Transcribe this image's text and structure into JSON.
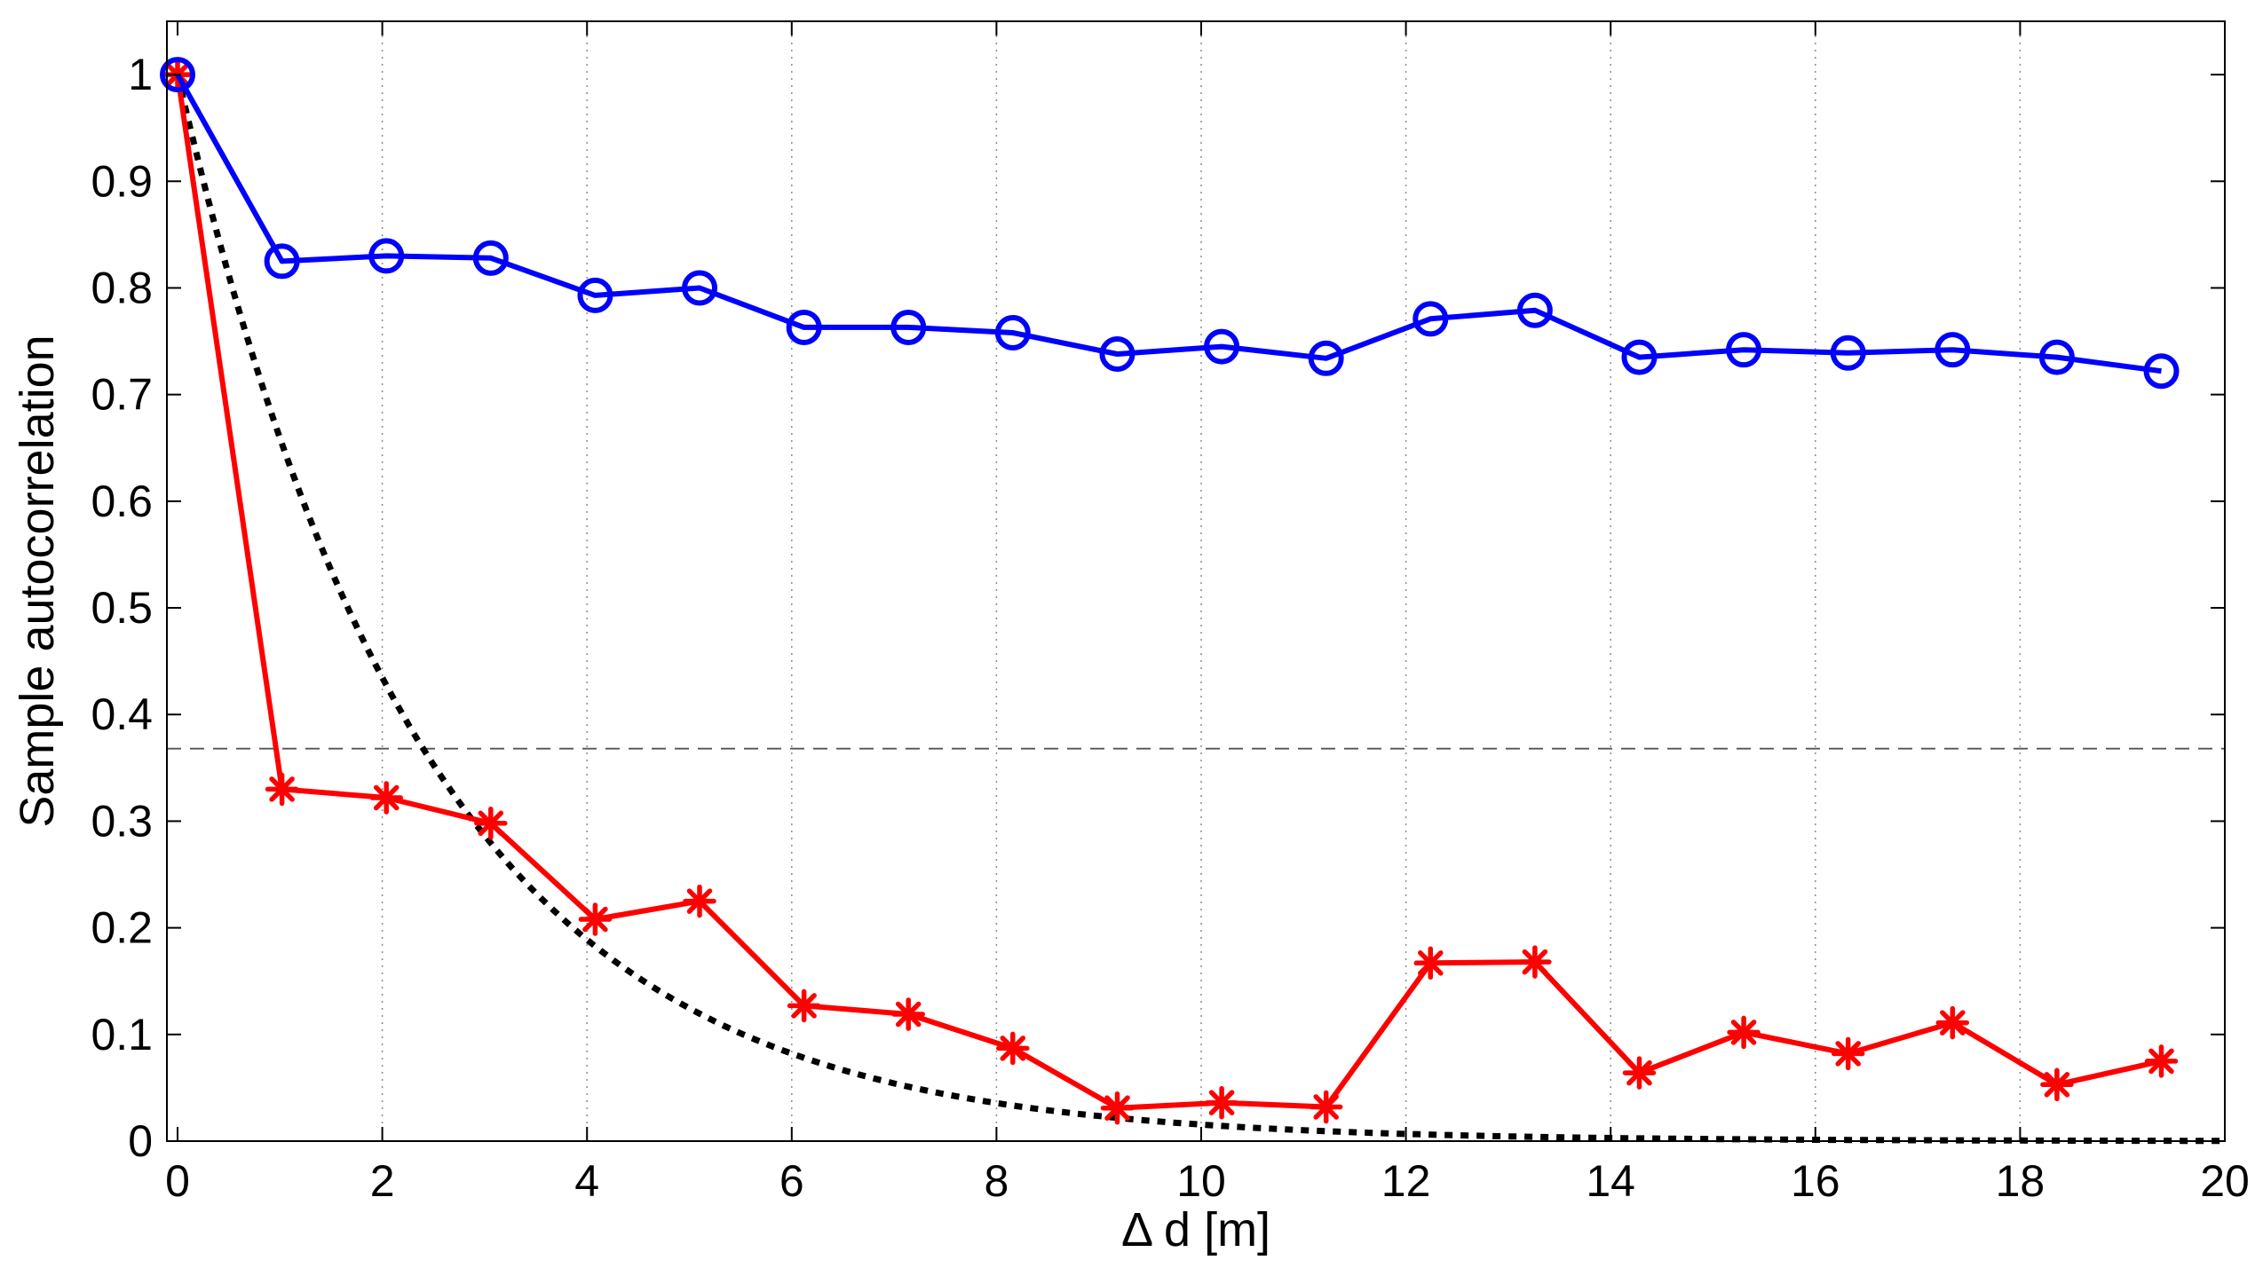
{
  "chart_data": {
    "type": "line",
    "title": "",
    "xlabel": "Δ d [m]",
    "ylabel": "Sample autocorrelation",
    "xlim": [
      0,
      20
    ],
    "ylim": [
      0,
      1.05
    ],
    "grid": "x-dotted",
    "xticks": [
      0,
      2,
      4,
      6,
      8,
      10,
      12,
      14,
      16,
      18,
      20
    ],
    "xtick_labels": [
      "0",
      "2",
      "4",
      "6",
      "8",
      "10",
      "12",
      "14",
      "16",
      "18",
      "20"
    ],
    "yticks": [
      0,
      0.1,
      0.2,
      0.3,
      0.4,
      0.5,
      0.6,
      0.7,
      0.8,
      0.9,
      1
    ],
    "ytick_labels": [
      "0",
      "0.1",
      "0.2",
      "0.3",
      "0.4",
      "0.5",
      "0.6",
      "0.7",
      "0.8",
      "0.9",
      "1"
    ],
    "colors": {
      "series_1": "#0000ff",
      "series_2": "#ff0000",
      "exponential": "#000000",
      "threshold": "#555555",
      "grid": "#8c8c8c"
    },
    "series": [
      {
        "marker": "circle",
        "style": "solid",
        "x": [
          0,
          1.02,
          2.04,
          3.06,
          4.08,
          5.1,
          6.12,
          7.14,
          8.16,
          9.18,
          10.2,
          11.22,
          12.24,
          13.26,
          14.28,
          15.3,
          16.32,
          17.34,
          18.36,
          19.38
        ],
        "y": [
          1.0,
          0.825,
          0.83,
          0.828,
          0.793,
          0.8,
          0.763,
          0.763,
          0.758,
          0.738,
          0.745,
          0.734,
          0.771,
          0.779,
          0.735,
          0.742,
          0.739,
          0.742,
          0.735,
          0.722
        ]
      },
      {
        "marker": "asterisk",
        "style": "solid",
        "x": [
          0,
          1.02,
          2.04,
          3.06,
          4.08,
          5.1,
          6.12,
          7.14,
          8.16,
          9.18,
          10.2,
          11.22,
          12.24,
          13.26,
          14.28,
          15.3,
          16.32,
          17.34,
          18.36,
          19.38
        ],
        "y": [
          1.0,
          0.33,
          0.322,
          0.298,
          0.208,
          0.225,
          0.127,
          0.119,
          0.087,
          0.031,
          0.036,
          0.032,
          0.167,
          0.168,
          0.064,
          0.102,
          0.082,
          0.111,
          0.053,
          0.075
        ]
      },
      {
        "style": "dotted",
        "function": "exp(-x/2.4)",
        "decay_length": 2.4,
        "x_range": [
          0,
          20
        ]
      }
    ],
    "reference_lines": [
      {
        "orientation": "horizontal",
        "y": 0.368,
        "style": "dashed"
      }
    ]
  }
}
